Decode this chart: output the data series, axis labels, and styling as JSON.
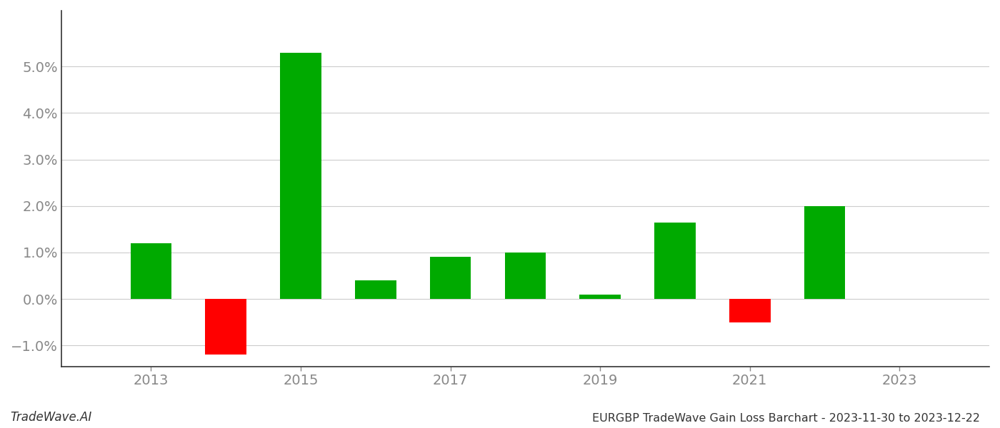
{
  "years": [
    2013,
    2014,
    2015,
    2016,
    2017,
    2018,
    2019,
    2020,
    2021,
    2022
  ],
  "values": [
    0.012,
    -0.012,
    0.053,
    0.004,
    0.009,
    0.01,
    0.001,
    0.0165,
    -0.005,
    0.02
  ],
  "bar_colors": [
    "#00aa00",
    "#ff0000",
    "#00aa00",
    "#00aa00",
    "#00aa00",
    "#00aa00",
    "#00aa00",
    "#00aa00",
    "#ff0000",
    "#00aa00"
  ],
  "bar_width": 0.55,
  "xlim": [
    2011.8,
    2024.2
  ],
  "ylim": [
    -0.0145,
    0.062
  ],
  "grid_color": "#cccccc",
  "background_color": "#ffffff",
  "title": "EURGBP TradeWave Gain Loss Barchart - 2023-11-30 to 2023-12-22",
  "footer_left": "TradeWave.AI",
  "title_fontsize": 11.5,
  "footer_fontsize": 12,
  "tick_label_color": "#888888",
  "yticks": [
    -0.01,
    0.0,
    0.01,
    0.02,
    0.03,
    0.04,
    0.05
  ],
  "xticks": [
    2013,
    2015,
    2017,
    2019,
    2021,
    2023
  ],
  "tick_fontsize": 14,
  "spine_color": "#333333"
}
